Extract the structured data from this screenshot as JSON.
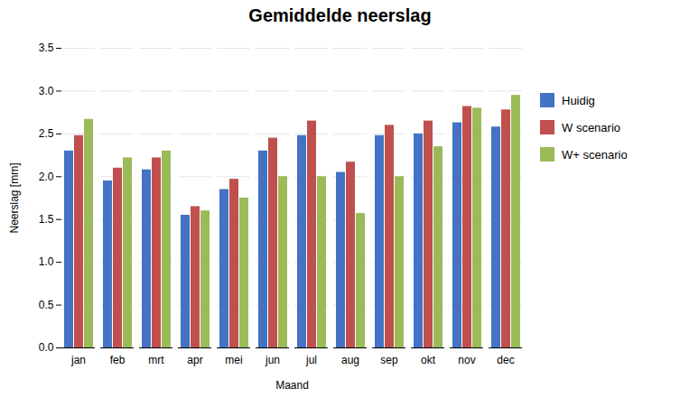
{
  "chart_data": {
    "type": "bar",
    "title": "Gemiddelde neerslag",
    "xlabel": "Maand",
    "ylabel": "Neerslag [mm]",
    "categories": [
      "jan",
      "feb",
      "mrt",
      "apr",
      "mei",
      "jun",
      "jul",
      "aug",
      "sep",
      "okt",
      "nov",
      "dec"
    ],
    "series": [
      {
        "name": "Huidig",
        "color": "#4472C4",
        "values": [
          2.3,
          1.95,
          2.08,
          1.55,
          1.85,
          2.3,
          2.48,
          2.05,
          2.48,
          2.5,
          2.63,
          2.58
        ]
      },
      {
        "name": "W scenario",
        "color": "#C0504D",
        "values": [
          2.48,
          2.1,
          2.22,
          1.65,
          1.97,
          2.45,
          2.65,
          2.17,
          2.6,
          2.65,
          2.82,
          2.78
        ]
      },
      {
        "name": "W+ scenario",
        "color": "#9BBB59",
        "values": [
          2.67,
          2.22,
          2.3,
          1.6,
          1.75,
          2.0,
          2.0,
          1.57,
          2.0,
          2.35,
          2.8,
          2.95
        ]
      }
    ],
    "ylim": [
      0.0,
      3.5
    ],
    "yticks": [
      {
        "value": 0,
        "label": "0.0"
      },
      0.5,
      {
        "value": 1,
        "label": "1.0"
      },
      1.5,
      {
        "value": 2,
        "label": "2.0"
      },
      2.5,
      {
        "value": 3,
        "label": "3.0"
      },
      3.5
    ],
    "grid": true,
    "legend": "right"
  }
}
